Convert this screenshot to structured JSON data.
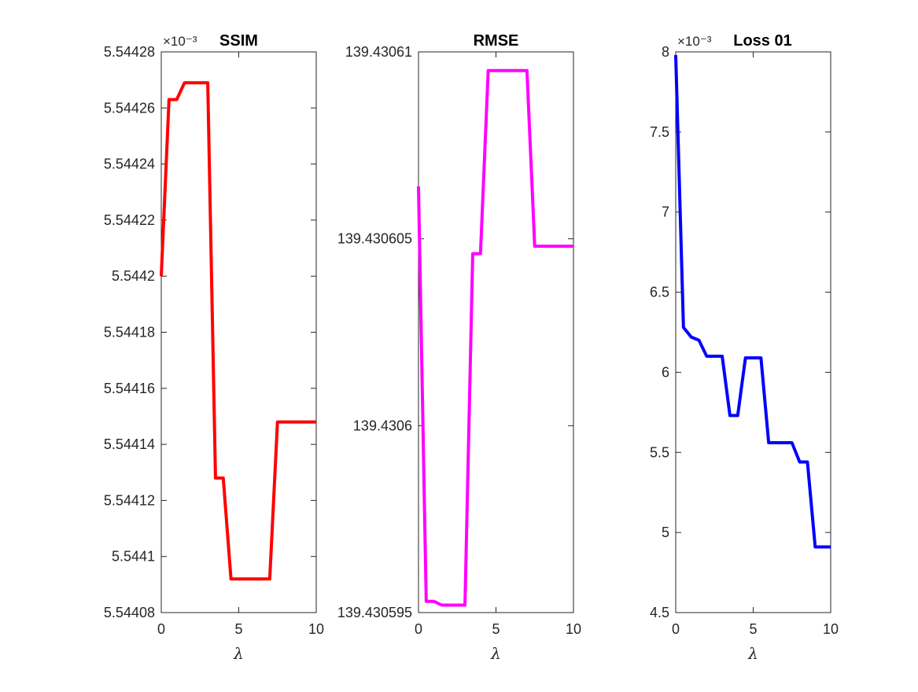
{
  "chart_data": [
    {
      "type": "line",
      "title": "SSIM",
      "xlabel": "λ",
      "ylabel": "",
      "xlim": [
        0,
        10
      ],
      "ylim": [
        5.54408,
        5.54428
      ],
      "exponent_label": "×10⁻³",
      "xticks": [
        {
          "value": 0,
          "label": "0"
        },
        {
          "value": 5,
          "label": "5"
        },
        {
          "value": 10,
          "label": "10"
        }
      ],
      "yticks": [
        {
          "value": 5.54408,
          "label": "5.54408"
        },
        {
          "value": 5.5441,
          "label": "5.5441"
        },
        {
          "value": 5.54412,
          "label": "5.54412"
        },
        {
          "value": 5.54414,
          "label": "5.54414"
        },
        {
          "value": 5.54416,
          "label": "5.54416"
        },
        {
          "value": 5.54418,
          "label": "5.54418"
        },
        {
          "value": 5.5442,
          "label": "5.5442"
        },
        {
          "value": 5.54422,
          "label": "5.54422"
        },
        {
          "value": 5.54424,
          "label": "5.54424"
        },
        {
          "value": 5.54426,
          "label": "5.54426"
        },
        {
          "value": 5.54428,
          "label": "5.54428"
        }
      ],
      "series": [
        {
          "color": "#ff0000",
          "x": [
            0,
            0.5,
            1,
            1.5,
            2,
            2.5,
            3,
            3.5,
            4,
            4.5,
            5,
            5.5,
            6,
            6.5,
            7,
            7.5,
            8,
            8.5,
            9,
            9.5,
            10
          ],
          "y": [
            5.5442,
            5.544263,
            5.544263,
            5.544269,
            5.544269,
            5.544269,
            5.544269,
            5.544128,
            5.544128,
            5.544092,
            5.544092,
            5.544092,
            5.544092,
            5.544092,
            5.544092,
            5.544148,
            5.544148,
            5.544148,
            5.544148,
            5.544148,
            5.544148
          ]
        }
      ]
    },
    {
      "type": "line",
      "title": "RMSE",
      "xlabel": "λ",
      "ylabel": "",
      "xlim": [
        0,
        10
      ],
      "ylim": [
        139.430595,
        139.43061
      ],
      "exponent_label": "",
      "xticks": [
        {
          "value": 0,
          "label": "0"
        },
        {
          "value": 5,
          "label": "5"
        },
        {
          "value": 10,
          "label": "10"
        }
      ],
      "yticks": [
        {
          "value": 139.430595,
          "label": "139.430595"
        },
        {
          "value": 139.4306,
          "label": "139.4306"
        },
        {
          "value": 139.430605,
          "label": "139.430605"
        },
        {
          "value": 139.43061,
          "label": "139.43061"
        }
      ],
      "series": [
        {
          "color": "#ff00ff",
          "x": [
            0,
            0.5,
            1,
            1.5,
            2,
            2.5,
            3,
            3.5,
            4,
            4.5,
            5,
            5.5,
            6,
            6.5,
            7,
            7.5,
            8,
            8.5,
            9,
            9.5,
            10
          ],
          "y": [
            139.4306064,
            139.4305953,
            139.4305953,
            139.4305952,
            139.4305952,
            139.4305952,
            139.4305952,
            139.4306046,
            139.4306046,
            139.4306095,
            139.4306095,
            139.4306095,
            139.4306095,
            139.4306095,
            139.4306095,
            139.4306048,
            139.4306048,
            139.4306048,
            139.4306048,
            139.4306048,
            139.4306048
          ]
        }
      ]
    },
    {
      "type": "line",
      "title": "Loss 01",
      "xlabel": "λ",
      "ylabel": "",
      "xlim": [
        0,
        10
      ],
      "ylim": [
        4.5,
        8
      ],
      "exponent_label": "×10⁻³",
      "xticks": [
        {
          "value": 0,
          "label": "0"
        },
        {
          "value": 5,
          "label": "5"
        },
        {
          "value": 10,
          "label": "10"
        }
      ],
      "yticks": [
        {
          "value": 4.5,
          "label": "4.5"
        },
        {
          "value": 5,
          "label": "5"
        },
        {
          "value": 5.5,
          "label": "5.5"
        },
        {
          "value": 6,
          "label": "6"
        },
        {
          "value": 6.5,
          "label": "6.5"
        },
        {
          "value": 7,
          "label": "7"
        },
        {
          "value": 7.5,
          "label": "7.5"
        },
        {
          "value": 8,
          "label": "8"
        }
      ],
      "series": [
        {
          "color": "#0000ff",
          "x": [
            0,
            0.5,
            1,
            1.5,
            2,
            2.5,
            3,
            3.5,
            4,
            4.5,
            5,
            5.5,
            6,
            6.5,
            7,
            7.5,
            8,
            8.5,
            9,
            9.5,
            10
          ],
          "y": [
            7.98,
            6.28,
            6.22,
            6.2,
            6.1,
            6.1,
            6.1,
            5.73,
            5.73,
            6.09,
            6.09,
            6.09,
            5.56,
            5.56,
            5.56,
            5.56,
            5.44,
            5.44,
            4.91,
            4.91,
            4.91
          ]
        }
      ]
    }
  ]
}
